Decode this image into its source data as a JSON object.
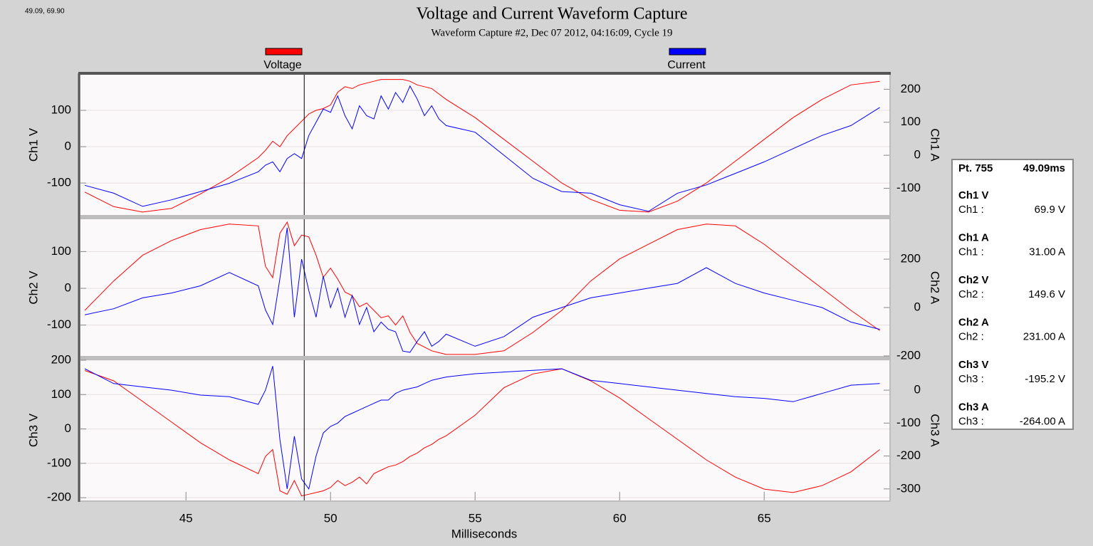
{
  "header": {
    "title": "Voltage and Current Waveform Capture",
    "subtitle": "Waveform Capture #2, Dec 07 2012, 04:16:09,  Cycle 19"
  },
  "readout": "49.09, 69.90",
  "cursor_x": 49.09,
  "info_panel": {
    "point": "Pt. 755",
    "time": "49.09ms",
    "rows": [
      {
        "title": "Ch1 V",
        "label": "Ch1 :",
        "value": "69.9 V"
      },
      {
        "title": "Ch1 A",
        "label": "Ch1 :",
        "value": "31.00 A"
      },
      {
        "title": "Ch2 V",
        "label": "Ch2 :",
        "value": "149.6 V"
      },
      {
        "title": "Ch2 A",
        "label": "Ch2 :",
        "value": "231.00 A"
      },
      {
        "title": "Ch3 V",
        "label": "Ch3 :",
        "value": "-195.2 V"
      },
      {
        "title": "Ch3 A",
        "label": "Ch3 :",
        "value": "-264.00 A"
      }
    ]
  },
  "chart_data": [
    {
      "type": "line",
      "ylabel": "Ch1 V",
      "y2label": "Ch1 A",
      "grid": true,
      "x": [
        41.5,
        42.5,
        43.5,
        44.5,
        45.5,
        46.5,
        47.5,
        47.75,
        48,
        48.25,
        48.5,
        48.75,
        49,
        49.25,
        49.5,
        49.75,
        50,
        50.25,
        50.5,
        50.75,
        51,
        51.25,
        51.5,
        51.75,
        52,
        52.25,
        52.5,
        52.75,
        53,
        53.25,
        53.5,
        53.75,
        54,
        55,
        56,
        57,
        58,
        59,
        60,
        61,
        62,
        63,
        64,
        65,
        66,
        67,
        68,
        69
      ],
      "xlim": [
        41.35,
        69.33
      ],
      "ylim": [
        -188,
        198
      ],
      "yticks": [
        -100,
        0,
        100
      ],
      "y2lim": [
        -181,
        244
      ],
      "y2ticks": [
        -100,
        0,
        100,
        200
      ],
      "series": [
        {
          "name": "Voltage",
          "color": "#ff0000",
          "values": [
            -125,
            -165,
            -180,
            -170,
            -130,
            -85,
            -30,
            -10,
            15,
            0,
            30,
            50,
            70,
            90,
            100,
            105,
            115,
            150,
            165,
            160,
            170,
            175,
            180,
            185,
            185,
            185,
            185,
            180,
            170,
            165,
            160,
            145,
            130,
            80,
            20,
            -40,
            -100,
            -145,
            -175,
            -180,
            -150,
            -100,
            -40,
            20,
            80,
            130,
            170,
            180
          ]
        },
        {
          "name": "Current",
          "color": "#0000ff",
          "axis": "y2",
          "values": [
            -91,
            -115,
            -155,
            -135,
            -110,
            -85,
            -50,
            -30,
            -20,
            -50,
            -10,
            5,
            -10,
            60,
            100,
            140,
            130,
            180,
            120,
            80,
            150,
            120,
            110,
            180,
            140,
            190,
            160,
            210,
            170,
            120,
            150,
            110,
            90,
            70,
            0,
            -70,
            -110,
            -115,
            -150,
            -170,
            -115,
            -90,
            -55,
            -20,
            20,
            60,
            90,
            145
          ]
        }
      ]
    },
    {
      "type": "line",
      "ylabel": "Ch2 V",
      "y2label": "Ch2 A",
      "grid": true,
      "x": [
        41.5,
        42.5,
        43.5,
        44.5,
        45.5,
        46.5,
        47.5,
        47.75,
        48,
        48.25,
        48.5,
        48.75,
        49,
        49.25,
        49.5,
        49.75,
        50,
        50.25,
        50.5,
        50.75,
        51,
        51.25,
        51.5,
        51.75,
        52,
        52.25,
        52.5,
        52.75,
        53,
        53.25,
        53.5,
        53.75,
        54,
        55,
        56,
        57,
        58,
        59,
        60,
        61,
        62,
        63,
        64,
        65,
        66,
        67,
        68,
        69
      ],
      "xlim": [
        41.35,
        69.33
      ],
      "ylim": [
        -184,
        188
      ],
      "yticks": [
        -100,
        0,
        100
      ],
      "y2lim": [
        -200,
        365
      ],
      "y2ticks": [
        -200,
        0,
        200
      ],
      "series": [
        {
          "color": "#ff0000",
          "values": [
            -60,
            20,
            90,
            130,
            160,
            175,
            170,
            60,
            29,
            150,
            180,
            116,
            145,
            140,
            90,
            30,
            55,
            25,
            -10,
            -20,
            -50,
            -40,
            -60,
            -80,
            -75,
            -100,
            -75,
            -120,
            -150,
            -160,
            -170,
            -175,
            -180,
            -180,
            -170,
            -120,
            -60,
            20,
            80,
            120,
            160,
            175,
            170,
            120,
            60,
            0,
            -60,
            -115
          ]
        },
        {
          "color": "#0000ff",
          "axis": "y2",
          "values": [
            -30,
            -5,
            40,
            60,
            90,
            145,
            90,
            -10,
            -70,
            120,
            330,
            -40,
            200,
            70,
            -40,
            130,
            0,
            80,
            -40,
            50,
            -70,
            0,
            -100,
            -60,
            -90,
            -100,
            -180,
            -185,
            -140,
            -100,
            -160,
            -140,
            -110,
            -160,
            -120,
            -40,
            0,
            40,
            60,
            80,
            100,
            165,
            100,
            60,
            30,
            0,
            -60,
            -90
          ]
        }
      ]
    },
    {
      "type": "line",
      "ylabel": "Ch3 V",
      "y2label": "Ch3 A",
      "grid": true,
      "xlabel": "Milliseconds",
      "x": [
        41.5,
        42.5,
        43.5,
        44.5,
        45.5,
        46.5,
        47.5,
        47.75,
        48,
        48.25,
        48.5,
        48.75,
        49,
        49.25,
        49.5,
        49.75,
        50,
        50.25,
        50.5,
        50.75,
        51,
        51.25,
        51.5,
        51.75,
        52,
        52.25,
        52.5,
        52.75,
        53,
        53.25,
        53.5,
        53.75,
        54,
        55,
        56,
        57,
        58,
        59,
        60,
        61,
        62,
        63,
        64,
        65,
        66,
        67,
        68,
        69
      ],
      "xlim": [
        41.35,
        69.33
      ],
      "xticks": [
        45,
        50,
        55,
        60,
        65
      ],
      "ylim": [
        -208,
        200
      ],
      "yticks": [
        -200,
        -100,
        0,
        100,
        200
      ],
      "y2lim": [
        -335,
        91
      ],
      "y2ticks": [
        -300,
        -200,
        -100,
        0
      ],
      "series": [
        {
          "color": "#ff0000",
          "values": [
            170,
            140,
            80,
            20,
            -40,
            -90,
            -130,
            -80,
            -60,
            -180,
            -190,
            -150,
            -195,
            -190,
            -185,
            -180,
            -170,
            -150,
            -165,
            -155,
            -140,
            -160,
            -130,
            -120,
            -110,
            -105,
            -95,
            -80,
            -70,
            -55,
            -45,
            -30,
            -20,
            40,
            120,
            160,
            175,
            140,
            90,
            30,
            -30,
            -90,
            -140,
            -175,
            -185,
            -165,
            -125,
            -60
          ]
        },
        {
          "color": "#0000ff",
          "axis": "y2",
          "values": [
            65,
            20,
            10,
            0,
            -15,
            -20,
            -43,
            0,
            73,
            -150,
            -300,
            -140,
            -270,
            -300,
            -200,
            -130,
            -110,
            -100,
            -80,
            -70,
            -60,
            -50,
            -40,
            -30,
            -30,
            -10,
            0,
            5,
            10,
            20,
            30,
            35,
            40,
            50,
            55,
            60,
            65,
            30,
            20,
            10,
            0,
            -10,
            -20,
            -25,
            -35,
            -10,
            15,
            20
          ]
        }
      ]
    }
  ]
}
